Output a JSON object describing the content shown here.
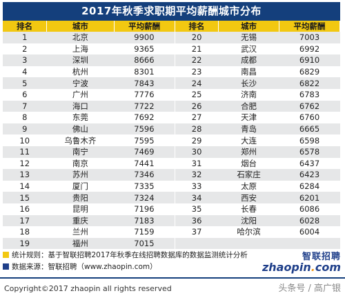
{
  "title": "2017年秋季求职期平均薪酬城市分布",
  "headers": [
    "排名",
    "城市",
    "平均薪酬",
    "排名",
    "城市",
    "平均薪酬"
  ],
  "rows": [
    {
      "r1": "1",
      "c1": "北京",
      "s1": "9900",
      "r2": "20",
      "c2": "无锡",
      "s2": "7003"
    },
    {
      "r1": "2",
      "c1": "上海",
      "s1": "9365",
      "r2": "21",
      "c2": "武汉",
      "s2": "6992"
    },
    {
      "r1": "3",
      "c1": "深圳",
      "s1": "8666",
      "r2": "22",
      "c2": "成都",
      "s2": "6910"
    },
    {
      "r1": "4",
      "c1": "杭州",
      "s1": "8301",
      "r2": "23",
      "c2": "南昌",
      "s2": "6829"
    },
    {
      "r1": "5",
      "c1": "宁波",
      "s1": "7843",
      "r2": "24",
      "c2": "长沙",
      "s2": "6822"
    },
    {
      "r1": "6",
      "c1": "广州",
      "s1": "7776",
      "r2": "25",
      "c2": "济南",
      "s2": "6783"
    },
    {
      "r1": "7",
      "c1": "海口",
      "s1": "7722",
      "r2": "26",
      "c2": "合肥",
      "s2": "6762"
    },
    {
      "r1": "8",
      "c1": "东莞",
      "s1": "7692",
      "r2": "27",
      "c2": "天津",
      "s2": "6760"
    },
    {
      "r1": "9",
      "c1": "佛山",
      "s1": "7596",
      "r2": "28",
      "c2": "青岛",
      "s2": "6665"
    },
    {
      "r1": "10",
      "c1": "乌鲁木齐",
      "s1": "7595",
      "r2": "29",
      "c2": "大连",
      "s2": "6598"
    },
    {
      "r1": "11",
      "c1": "南宁",
      "s1": "7469",
      "r2": "30",
      "c2": "郑州",
      "s2": "6578"
    },
    {
      "r1": "12",
      "c1": "南京",
      "s1": "7441",
      "r2": "31",
      "c2": "烟台",
      "s2": "6437"
    },
    {
      "r1": "13",
      "c1": "苏州",
      "s1": "7346",
      "r2": "32",
      "c2": "石家庄",
      "s2": "6423"
    },
    {
      "r1": "14",
      "c1": "厦门",
      "s1": "7335",
      "r2": "33",
      "c2": "太原",
      "s2": "6284"
    },
    {
      "r1": "15",
      "c1": "贵阳",
      "s1": "7324",
      "r2": "34",
      "c2": "西安",
      "s2": "6201"
    },
    {
      "r1": "16",
      "c1": "昆明",
      "s1": "7196",
      "r2": "35",
      "c2": "长春",
      "s2": "6086"
    },
    {
      "r1": "17",
      "c1": "重庆",
      "s1": "7183",
      "r2": "36",
      "c2": "沈阳",
      "s2": "6028"
    },
    {
      "r1": "18",
      "c1": "兰州",
      "s1": "7159",
      "r2": "37",
      "c2": "哈尔滨",
      "s2": "6004"
    },
    {
      "r1": "19",
      "c1": "福州",
      "s1": "7015",
      "r2": "",
      "c2": "",
      "s2": ""
    }
  ],
  "notes": {
    "stats_rule": "统计规则：基于智联招聘2017年秋季在线招聘数据库的数据监测统计分析",
    "source": "数据来源：智联招聘（www.zhaopin.com）"
  },
  "logo": {
    "cn": "智联招聘",
    "en_main": "zhaopin",
    "en_dot": ".",
    "en_tail": "com"
  },
  "copyright": "Copyright©2017 zhaopin all rights reserved",
  "watermark": "头条号 / 高广银",
  "colors": {
    "title_bg": "#143f7c",
    "header_bg": "#f2c811",
    "alt_row": "#e6e7e8",
    "brand_blue": "#1f3f8a"
  }
}
